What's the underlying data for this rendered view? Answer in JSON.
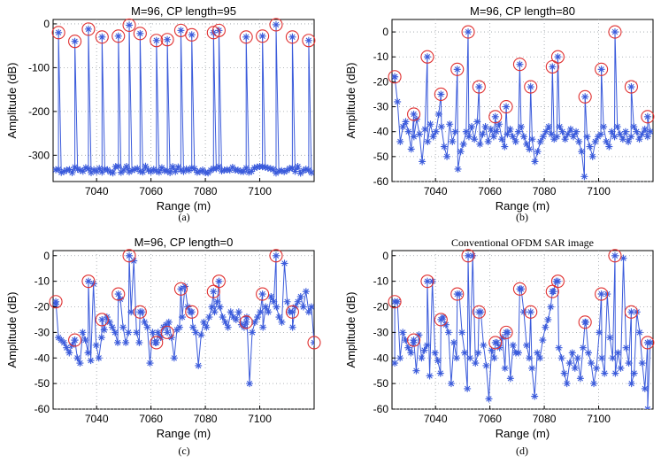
{
  "figure": {
    "caption_labels": [
      "(a)",
      "(b)",
      "(c)",
      "(d)"
    ]
  },
  "colors": {
    "series": "#3b5bdb",
    "peak_marker": "#e03131",
    "grid": "#9aa0a6",
    "axis": "#000000"
  },
  "chart_data": [
    {
      "id": "a",
      "type": "line",
      "title": "M=96, CP length=95",
      "xlabel": "Range (m)",
      "ylabel": "Amplitude (dB)",
      "xlim": [
        7024,
        7120
      ],
      "ylim": [
        -360,
        10
      ],
      "xticks": [
        7040,
        7060,
        7080,
        7100
      ],
      "yticks": [
        0,
        -100,
        -200,
        -300
      ],
      "grid": true,
      "peaks": [
        [
          7026,
          -20
        ],
        [
          7032,
          -40
        ],
        [
          7037,
          -12
        ],
        [
          7042,
          -30
        ],
        [
          7048,
          -28
        ],
        [
          7052,
          -3
        ],
        [
          7056,
          -22
        ],
        [
          7062,
          -38
        ],
        [
          7066,
          -36
        ],
        [
          7071,
          -15
        ],
        [
          7075,
          -25
        ],
        [
          7083,
          -20
        ],
        [
          7085,
          -15
        ],
        [
          7095,
          -30
        ],
        [
          7101,
          -28
        ],
        [
          7106,
          -2
        ],
        [
          7112,
          -30
        ],
        [
          7118,
          -38
        ]
      ],
      "floor_mean": -333,
      "floor_jitter": 8
    },
    {
      "id": "b",
      "type": "line",
      "title": "M=96, CP length=80",
      "xlabel": "Range (m)",
      "ylabel": "Amplitude (dB)",
      "xlim": [
        7024,
        7120
      ],
      "ylim": [
        -60,
        5
      ],
      "xticks": [
        7040,
        7060,
        7080,
        7100
      ],
      "yticks": [
        0,
        -10,
        -20,
        -30,
        -40,
        -50,
        -60
      ],
      "grid": true,
      "peaks": [
        [
          7025,
          -18
        ],
        [
          7032,
          -33
        ],
        [
          7037,
          -10
        ],
        [
          7042,
          -25
        ],
        [
          7048,
          -15
        ],
        [
          7052,
          0
        ],
        [
          7056,
          -22
        ],
        [
          7062,
          -34
        ],
        [
          7066,
          -30
        ],
        [
          7071,
          -13
        ],
        [
          7075,
          -22
        ],
        [
          7083,
          -14
        ],
        [
          7085,
          -10
        ],
        [
          7095,
          -26
        ],
        [
          7101,
          -15
        ],
        [
          7106,
          0
        ],
        [
          7112,
          -22
        ],
        [
          7118,
          -34
        ]
      ],
      "markers_y": [
        -18,
        -28,
        -44,
        -38,
        -36,
        -40,
        -47,
        -42,
        -35,
        -41,
        -52,
        -39,
        -44,
        -37,
        -42,
        -40,
        -33,
        -38,
        -46,
        -50,
        -37,
        -44,
        -40,
        -55,
        -48,
        -45,
        -40,
        -42,
        -38,
        -43,
        -36,
        -45,
        -41,
        -38,
        -44,
        -39,
        -42,
        -40,
        -37,
        -43,
        -46,
        -41,
        -39,
        -42,
        -44,
        -40,
        -38,
        -42,
        -45,
        -47,
        -43,
        -52,
        -48,
        -44,
        -42,
        -40,
        -38,
        -41,
        -43,
        -42,
        -38,
        -40,
        -43,
        -41,
        -39,
        -42,
        -40,
        -44,
        -48,
        -58,
        -42,
        -46,
        -50,
        -44,
        -42,
        -41,
        -38,
        -44,
        -46,
        -40,
        -42,
        -38,
        -41,
        -43,
        -40,
        -44,
        -42,
        -38,
        -40,
        -43,
        -41,
        -39,
        -42,
        -40
      ]
    },
    {
      "id": "c",
      "type": "line",
      "title": "M=96, CP length=0",
      "xlabel": "Range (m)",
      "ylabel": "Amplitude (dB)",
      "xlim": [
        7024,
        7120
      ],
      "ylim": [
        -60,
        2
      ],
      "xticks": [
        7040,
        7060,
        7080,
        7100
      ],
      "yticks": [
        0,
        -10,
        -20,
        -30,
        -40,
        -50,
        -60
      ],
      "grid": true,
      "peaks": [
        [
          7025,
          -18
        ],
        [
          7032,
          -33
        ],
        [
          7037,
          -10
        ],
        [
          7042,
          -25
        ],
        [
          7048,
          -15
        ],
        [
          7052,
          0
        ],
        [
          7056,
          -22
        ],
        [
          7062,
          -34
        ],
        [
          7066,
          -30
        ],
        [
          7071,
          -13
        ],
        [
          7075,
          -22
        ],
        [
          7083,
          -14
        ],
        [
          7085,
          -10
        ],
        [
          7095,
          -26
        ],
        [
          7101,
          -15
        ],
        [
          7106,
          0
        ],
        [
          7112,
          -22
        ],
        [
          7120,
          -34
        ]
      ],
      "markers_y": [
        -19,
        -32,
        -33,
        -34,
        -36,
        -38,
        -35,
        -33,
        -40,
        -42,
        -30,
        -33,
        -38,
        -41,
        -11,
        -35,
        -40,
        -32,
        -29,
        -24,
        -26,
        -28,
        -30,
        -34,
        -17,
        -28,
        -34,
        -30,
        -22,
        -2,
        -30,
        -34,
        -22,
        -26,
        -28,
        -42,
        -30,
        -34,
        -30,
        -32,
        -28,
        -27,
        -26,
        -32,
        -40,
        -29,
        -28,
        -24,
        -12,
        -20,
        -22,
        -28,
        -30,
        -43,
        -31,
        -26,
        -28,
        -24,
        -20,
        -22,
        -18,
        -20,
        -24,
        -26,
        -28,
        -22,
        -24,
        -25,
        -22,
        -27,
        -28,
        -24,
        -50,
        -30,
        -26,
        -24,
        -22,
        -28,
        -20,
        -22,
        -16,
        -18,
        -20,
        -24,
        -26,
        -3,
        -18,
        -22,
        -28,
        -20,
        -18,
        -16,
        -20,
        -14,
        -22,
        -20
      ]
    },
    {
      "id": "d",
      "type": "line",
      "title": "Conventional OFDM SAR image",
      "xlabel": "Range (m)",
      "ylabel": "Amplitude (dB)",
      "xlim": [
        7024,
        7120
      ],
      "ylim": [
        -60,
        2
      ],
      "xticks": [
        7040,
        7060,
        7080,
        7100
      ],
      "yticks": [
        0,
        -10,
        -20,
        -30,
        -40,
        -50,
        -60
      ],
      "grid": true,
      "peaks": [
        [
          7025,
          -18
        ],
        [
          7032,
          -33
        ],
        [
          7037,
          -10
        ],
        [
          7042,
          -25
        ],
        [
          7048,
          -15
        ],
        [
          7052,
          0
        ],
        [
          7056,
          -22
        ],
        [
          7062,
          -34
        ],
        [
          7066,
          -30
        ],
        [
          7071,
          -13
        ],
        [
          7075,
          -22
        ],
        [
          7083,
          -14
        ],
        [
          7085,
          -10
        ],
        [
          7095,
          -26
        ],
        [
          7101,
          -15
        ],
        [
          7106,
          0
        ],
        [
          7112,
          -22
        ],
        [
          7118,
          -34
        ]
      ],
      "markers_y": [
        -42,
        -18,
        -40,
        -30,
        -33,
        -36,
        -38,
        -34,
        -45,
        -31,
        -40,
        -37,
        -35,
        -47,
        -10,
        -38,
        -41,
        -46,
        -24,
        -27,
        -30,
        -50,
        -34,
        -40,
        -15,
        -30,
        -38,
        -52,
        -40,
        0,
        -42,
        -38,
        -22,
        -35,
        -43,
        -56,
        -37,
        -40,
        -34,
        -36,
        -32,
        -44,
        -30,
        -48,
        -35,
        -38,
        -38,
        -13,
        -22,
        -35,
        -40,
        -44,
        -55,
        -38,
        -40,
        -33,
        -28,
        -25,
        -20,
        -14,
        -10,
        -36,
        -40,
        -46,
        -50,
        -42,
        -38,
        -44,
        -40,
        -48,
        -36,
        -26,
        -38,
        -42,
        -50,
        -44,
        -30,
        -40,
        -46,
        -15,
        -32,
        -40,
        -46,
        -38,
        -44,
        -1,
        -36,
        -42,
        -50,
        -46,
        -22,
        -30,
        -42,
        -52,
        -60,
        -34
      ]
    }
  ]
}
